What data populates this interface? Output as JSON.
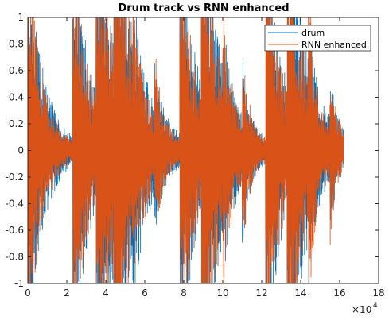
{
  "chart_data": {
    "type": "line",
    "title": "Drum track vs RNN enhanced",
    "xlabel": "",
    "ylabel": "",
    "xlim": [
      0,
      180000
    ],
    "ylim": [
      -1,
      1
    ],
    "x_exponent_label": "×10",
    "x_exponent_power": "4",
    "x_ticks": [
      0,
      20000,
      40000,
      60000,
      80000,
      100000,
      120000,
      140000,
      160000,
      180000
    ],
    "x_tick_labels": [
      "0",
      "2",
      "4",
      "6",
      "8",
      "10",
      "12",
      "14",
      "16",
      "18"
    ],
    "y_ticks": [
      -1,
      -0.8,
      -0.6,
      -0.4,
      -0.2,
      0,
      0.2,
      0.4,
      0.6,
      0.8,
      1
    ],
    "y_tick_labels": [
      "-1",
      "-0.8",
      "-0.6",
      "-0.4",
      "-0.2",
      "0",
      "0.2",
      "0.4",
      "0.6",
      "0.8",
      "1"
    ],
    "legend_position": "top-right",
    "grid": false,
    "signal_end": 162000,
    "series": [
      {
        "name": "drum",
        "color": "#0072BD",
        "events": [
          {
            "x": 0,
            "amp": 1.0,
            "decay": 8000
          },
          {
            "x": 23000,
            "amp": 1.0,
            "decay": 9000
          },
          {
            "x": 35000,
            "amp": 1.0,
            "decay": 12000
          },
          {
            "x": 44000,
            "amp": 1.0,
            "decay": 10000
          },
          {
            "x": 54000,
            "amp": 0.2,
            "decay": 3000
          },
          {
            "x": 65000,
            "amp": 0.25,
            "decay": 3000
          },
          {
            "x": 78000,
            "amp": 1.0,
            "decay": 9000
          },
          {
            "x": 89000,
            "amp": 1.0,
            "decay": 10000
          },
          {
            "x": 100000,
            "amp": 0.25,
            "decay": 3000
          },
          {
            "x": 110000,
            "amp": 0.3,
            "decay": 3000
          },
          {
            "x": 122000,
            "amp": 1.0,
            "decay": 9000
          },
          {
            "x": 133000,
            "amp": 1.0,
            "decay": 10000
          },
          {
            "x": 144000,
            "amp": 0.25,
            "decay": 3000
          },
          {
            "x": 155000,
            "amp": 0.25,
            "decay": 3000
          }
        ],
        "noise": 0.02
      },
      {
        "name": "RNN enhanced",
        "color": "#D95319",
        "events": [
          {
            "x": 0,
            "amp": 1.0,
            "decay": 7000
          },
          {
            "x": 23000,
            "amp": 1.0,
            "decay": 8000
          },
          {
            "x": 35000,
            "amp": 1.0,
            "decay": 10000
          },
          {
            "x": 44000,
            "amp": 1.0,
            "decay": 9000
          },
          {
            "x": 54000,
            "amp": 0.3,
            "decay": 3000
          },
          {
            "x": 65000,
            "amp": 0.35,
            "decay": 3000
          },
          {
            "x": 78000,
            "amp": 1.0,
            "decay": 8000
          },
          {
            "x": 89000,
            "amp": 1.0,
            "decay": 9000
          },
          {
            "x": 100000,
            "amp": 0.5,
            "decay": 3000
          },
          {
            "x": 110000,
            "amp": 0.45,
            "decay": 3000
          },
          {
            "x": 122000,
            "amp": 1.0,
            "decay": 8000
          },
          {
            "x": 133000,
            "amp": 1.0,
            "decay": 9000
          },
          {
            "x": 144000,
            "amp": 0.45,
            "decay": 3000
          },
          {
            "x": 155000,
            "amp": 0.35,
            "decay": 3000
          }
        ],
        "noise": 0.03
      }
    ]
  }
}
